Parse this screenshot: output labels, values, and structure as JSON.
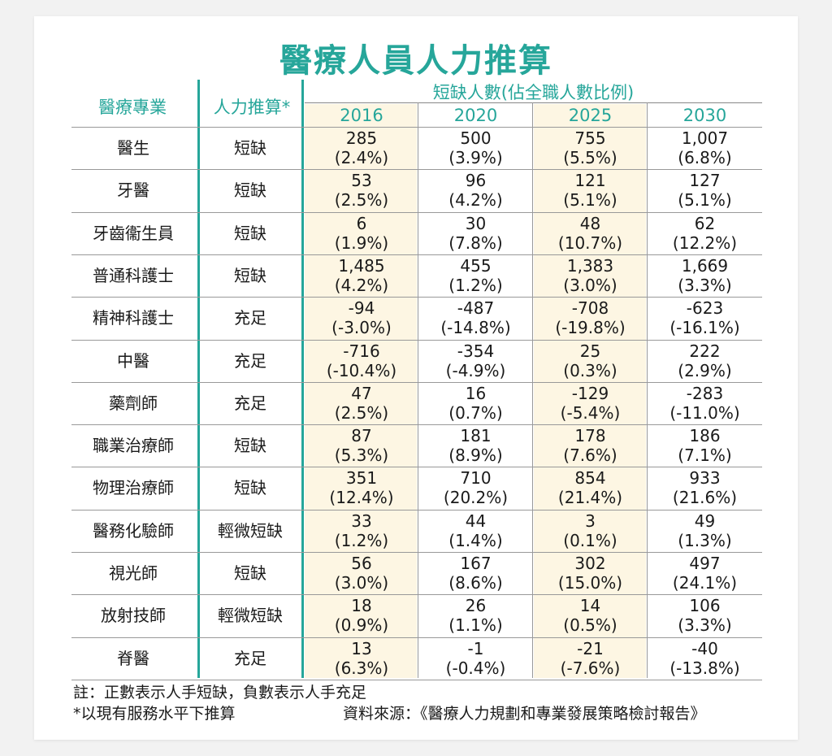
{
  "title": "醫療人員人力推算",
  "headers": {
    "profession": "醫療專業",
    "projection": "人力推算*",
    "shortage_group": "短缺人數(佔全職人數比例)",
    "years": [
      "2016",
      "2020",
      "2025",
      "2030"
    ]
  },
  "rows": [
    {
      "profession": "醫生",
      "status": "短缺",
      "values": [
        [
          "285",
          "(2.4%)"
        ],
        [
          "500",
          "(3.9%)"
        ],
        [
          "755",
          "(5.5%)"
        ],
        [
          "1,007",
          "(6.8%)"
        ]
      ]
    },
    {
      "profession": "牙醫",
      "status": "短缺",
      "values": [
        [
          "53",
          "(2.5%)"
        ],
        [
          "96",
          "(4.2%)"
        ],
        [
          "121",
          "(5.1%)"
        ],
        [
          "127",
          "(5.1%)"
        ]
      ]
    },
    {
      "profession": "牙齒衞生員",
      "status": "短缺",
      "values": [
        [
          "6",
          "(1.9%)"
        ],
        [
          "30",
          "(7.8%)"
        ],
        [
          "48",
          "(10.7%)"
        ],
        [
          "62",
          "(12.2%)"
        ]
      ]
    },
    {
      "profession": "普通科護士",
      "status": "短缺",
      "values": [
        [
          "1,485",
          "(4.2%)"
        ],
        [
          "455",
          "(1.2%)"
        ],
        [
          "1,383",
          "(3.0%)"
        ],
        [
          "1,669",
          "(3.3%)"
        ]
      ]
    },
    {
      "profession": "精神科護士",
      "status": "充足",
      "values": [
        [
          "-94",
          "(-3.0%)"
        ],
        [
          "-487",
          "(-14.8%)"
        ],
        [
          "-708",
          "(-19.8%)"
        ],
        [
          "-623",
          "(-16.1%)"
        ]
      ]
    },
    {
      "profession": "中醫",
      "status": "充足",
      "values": [
        [
          "-716",
          "(-10.4%)"
        ],
        [
          "-354",
          "(-4.9%)"
        ],
        [
          "25",
          "(0.3%)"
        ],
        [
          "222",
          "(2.9%)"
        ]
      ]
    },
    {
      "profession": "藥劑師",
      "status": "充足",
      "values": [
        [
          "47",
          "(2.5%)"
        ],
        [
          "16",
          "(0.7%)"
        ],
        [
          "-129",
          "(-5.4%)"
        ],
        [
          "-283",
          "(-11.0%)"
        ]
      ]
    },
    {
      "profession": "職業治療師",
      "status": "短缺",
      "values": [
        [
          "87",
          "(5.3%)"
        ],
        [
          "181",
          "(8.9%)"
        ],
        [
          "178",
          "(7.6%)"
        ],
        [
          "186",
          "(7.1%)"
        ]
      ]
    },
    {
      "profession": "物理治療師",
      "status": "短缺",
      "values": [
        [
          "351",
          "(12.4%)"
        ],
        [
          "710",
          "(20.2%)"
        ],
        [
          "854",
          "(21.4%)"
        ],
        [
          "933",
          "(21.6%)"
        ]
      ]
    },
    {
      "profession": "醫務化驗師",
      "status": "輕微短缺",
      "values": [
        [
          "33",
          "(1.2%)"
        ],
        [
          "44",
          "(1.4%)"
        ],
        [
          "3",
          "(0.1%)"
        ],
        [
          "49",
          "(1.3%)"
        ]
      ]
    },
    {
      "profession": "視光師",
      "status": "短缺",
      "values": [
        [
          "56",
          "(3.0%)"
        ],
        [
          "167",
          "(8.6%)"
        ],
        [
          "302",
          "(15.0%)"
        ],
        [
          "497",
          "(24.1%)"
        ]
      ]
    },
    {
      "profession": "放射技師",
      "status": "輕微短缺",
      "values": [
        [
          "18",
          "(0.9%)"
        ],
        [
          "26",
          "(1.1%)"
        ],
        [
          "14",
          "(0.5%)"
        ],
        [
          "106",
          "(3.3%)"
        ]
      ]
    },
    {
      "profession": "脊醫",
      "status": "充足",
      "values": [
        [
          "13",
          "(6.3%)"
        ],
        [
          "-1",
          "(-0.4%)"
        ],
        [
          "-21",
          "(-7.6%)"
        ],
        [
          "-40",
          "(-13.8%)"
        ]
      ]
    }
  ],
  "notes": {
    "note1": "註：正數表示人手短缺，負數表示人手充足",
    "note2": "*以現有服務水平下推算",
    "source": "資料來源：《醫療人力規劃和專業發展策略檢討報告》"
  },
  "colors": {
    "accent": "#26a69a",
    "highlight_band": "#fdf6e3"
  }
}
